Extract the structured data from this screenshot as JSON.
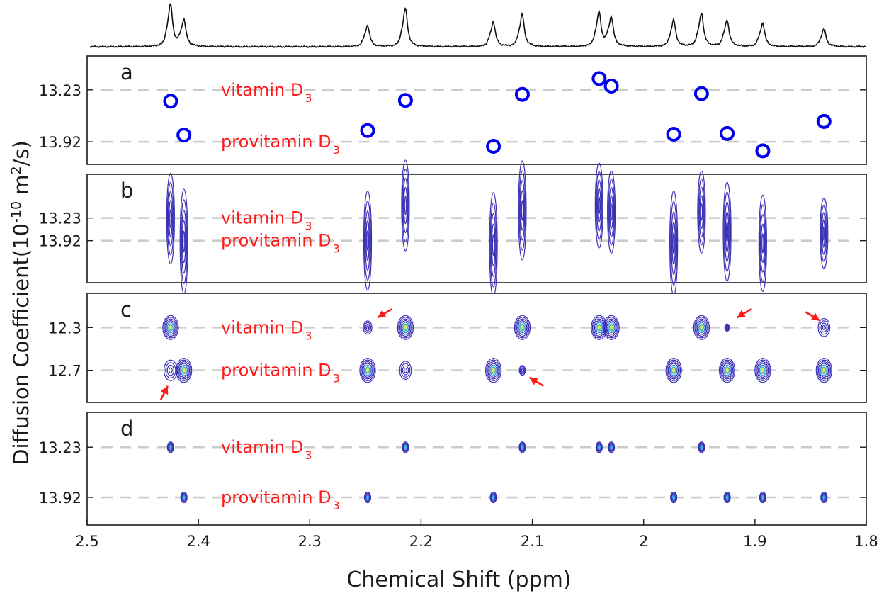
{
  "figure": {
    "xlabel": "Chemical Shift (ppm)",
    "ylabel_main": "Diffusion Coefficient(10",
    "ylabel_exp": "-10",
    "ylabel_unit": " m",
    "ylabel_unit_exp": "2",
    "ylabel_end": "/s)"
  },
  "colors": {
    "frame": "#1a1a1a",
    "dash": "#cccccc",
    "circle": "#0000ee",
    "label_red": "#ff1a1a",
    "contour_outer": "#3a2fb5",
    "contour_mid": "#2a7fe0",
    "contour_core": "#f7e14a"
  },
  "spectrum": {
    "peaks_ppm": [
      2.425,
      2.413,
      2.248,
      2.214,
      2.135,
      2.109,
      2.04,
      2.029,
      1.973,
      1.948,
      1.925,
      1.893,
      1.838
    ],
    "heights": [
      1.0,
      0.62,
      0.5,
      0.9,
      0.58,
      0.75,
      0.8,
      0.68,
      0.62,
      0.78,
      0.62,
      0.55,
      0.42
    ]
  },
  "chart_data": [
    {
      "panel": "a",
      "type": "scatter",
      "xlim": [
        2.5,
        1.8
      ],
      "x_reversed": true,
      "xticks": [
        "2.5",
        "2.4",
        "2.3",
        "2.2",
        "2.1",
        "2",
        "1.9",
        "1.8"
      ],
      "yticks": [
        13.23,
        13.92
      ],
      "ytick_labels": [
        "13.23",
        "13.92"
      ],
      "ylim": [
        12.78,
        14.22
      ],
      "series": [
        {
          "name": "vitamin D3",
          "x": [
            2.425,
            2.214,
            2.109,
            2.04,
            2.029,
            1.948
          ],
          "y": [
            13.38,
            13.37,
            13.29,
            13.08,
            13.18,
            13.28
          ]
        },
        {
          "name": "provitamin D3",
          "x": [
            2.413,
            2.248,
            2.135,
            1.973,
            1.925,
            1.893,
            1.838
          ],
          "y": [
            13.83,
            13.77,
            13.98,
            13.82,
            13.81,
            14.04,
            13.65
          ]
        }
      ],
      "labels": [
        {
          "text": "vitamin D",
          "sub": "3",
          "y": 13.23
        },
        {
          "text": "provitamin D",
          "sub": "3",
          "y": 13.92
        }
      ]
    },
    {
      "panel": "b",
      "type": "contour",
      "xlim": [
        2.5,
        1.8
      ],
      "yticks": [
        13.23,
        13.92
      ],
      "ytick_labels": [
        "13.23",
        "13.92"
      ],
      "ylim": [
        11.9,
        15.2
      ],
      "peaks": [
        {
          "x": 2.425,
          "y": 13.25,
          "h": 1.6
        },
        {
          "x": 2.413,
          "y": 13.95,
          "h": 1.85
        },
        {
          "x": 2.248,
          "y": 13.92,
          "h": 1.75
        },
        {
          "x": 2.214,
          "y": 12.85,
          "h": 1.6
        },
        {
          "x": 2.135,
          "y": 14.05,
          "h": 1.85
        },
        {
          "x": 2.109,
          "y": 13.0,
          "h": 1.75
        },
        {
          "x": 2.04,
          "y": 12.85,
          "h": 1.5
        },
        {
          "x": 2.029,
          "y": 13.05,
          "h": 1.45
        },
        {
          "x": 1.973,
          "y": 14.0,
          "h": 1.85
        },
        {
          "x": 1.948,
          "y": 13.05,
          "h": 1.45
        },
        {
          "x": 1.925,
          "y": 13.65,
          "h": 1.75
        },
        {
          "x": 1.893,
          "y": 14.0,
          "h": 1.7
        },
        {
          "x": 1.838,
          "y": 13.7,
          "h": 1.25
        }
      ],
      "labels": [
        {
          "text": "vitamin D",
          "sub": "3",
          "y": 13.23
        },
        {
          "text": "provitamin D",
          "sub": "3",
          "y": 13.92
        }
      ]
    },
    {
      "panel": "c",
      "type": "contour",
      "xlim": [
        2.5,
        1.8
      ],
      "yticks": [
        12.3,
        12.7
      ],
      "ytick_labels": [
        "12.3",
        "12.7"
      ],
      "ylim": [
        11.98,
        13.0
      ],
      "peaks": [
        {
          "x": 2.425,
          "y": 12.3,
          "size": 1.0,
          "filled": true
        },
        {
          "x": 2.214,
          "y": 12.3,
          "size": 1.0,
          "filled": true
        },
        {
          "x": 2.109,
          "y": 12.3,
          "size": 1.0,
          "filled": true
        },
        {
          "x": 2.04,
          "y": 12.3,
          "size": 1.0,
          "filled": true
        },
        {
          "x": 2.029,
          "y": 12.3,
          "size": 1.0,
          "filled": true
        },
        {
          "x": 1.948,
          "y": 12.3,
          "size": 1.0,
          "filled": true
        },
        {
          "x": 2.248,
          "y": 12.3,
          "size": 0.55,
          "filled": false
        },
        {
          "x": 1.925,
          "y": 12.3,
          "size": 0.3,
          "filled": false
        },
        {
          "x": 1.838,
          "y": 12.3,
          "size": 0.75,
          "filled": false
        },
        {
          "x": 2.425,
          "y": 12.7,
          "size": 0.85,
          "filled": false
        },
        {
          "x": 2.413,
          "y": 12.7,
          "size": 1.0,
          "filled": true
        },
        {
          "x": 2.248,
          "y": 12.7,
          "size": 1.0,
          "filled": true
        },
        {
          "x": 2.214,
          "y": 12.7,
          "size": 0.75,
          "filled": false
        },
        {
          "x": 2.135,
          "y": 12.7,
          "size": 1.0,
          "filled": true
        },
        {
          "x": 2.109,
          "y": 12.7,
          "size": 0.4,
          "filled": false
        },
        {
          "x": 1.973,
          "y": 12.7,
          "size": 1.0,
          "filled": true
        },
        {
          "x": 1.925,
          "y": 12.7,
          "size": 1.0,
          "filled": true
        },
        {
          "x": 1.893,
          "y": 12.7,
          "size": 1.0,
          "filled": true
        },
        {
          "x": 1.838,
          "y": 12.7,
          "size": 1.0,
          "filled": true
        }
      ],
      "arrows": [
        {
          "x": 2.248,
          "y": 12.3,
          "dir": "up-right"
        },
        {
          "x": 1.925,
          "y": 12.3,
          "dir": "up-right"
        },
        {
          "x": 1.838,
          "y": 12.3,
          "dir": "up-left"
        },
        {
          "x": 2.425,
          "y": 12.7,
          "dir": "down-left"
        },
        {
          "x": 2.109,
          "y": 12.7,
          "dir": "down-right"
        }
      ],
      "labels": [
        {
          "text": "vitamin D",
          "sub": "3",
          "y": 12.3
        },
        {
          "text": "provitamin D",
          "sub": "3",
          "y": 12.7
        }
      ]
    },
    {
      "panel": "d",
      "type": "contour",
      "xlim": [
        2.5,
        1.8
      ],
      "yticks": [
        13.23,
        13.92
      ],
      "ytick_labels": [
        "13.23",
        "13.92"
      ],
      "ylim": [
        12.75,
        14.3
      ],
      "peaks": [
        {
          "x": 2.425,
          "y": 13.23
        },
        {
          "x": 2.214,
          "y": 13.23
        },
        {
          "x": 2.109,
          "y": 13.23
        },
        {
          "x": 2.04,
          "y": 13.23
        },
        {
          "x": 2.029,
          "y": 13.23
        },
        {
          "x": 1.948,
          "y": 13.23
        },
        {
          "x": 2.413,
          "y": 13.92
        },
        {
          "x": 2.248,
          "y": 13.92
        },
        {
          "x": 2.135,
          "y": 13.92
        },
        {
          "x": 1.973,
          "y": 13.92
        },
        {
          "x": 1.925,
          "y": 13.92
        },
        {
          "x": 1.893,
          "y": 13.92
        },
        {
          "x": 1.838,
          "y": 13.92
        }
      ],
      "labels": [
        {
          "text": "vitamin D",
          "sub": "3",
          "y": 13.23
        },
        {
          "text": "provitamin D",
          "sub": "3",
          "y": 13.92
        }
      ]
    }
  ]
}
